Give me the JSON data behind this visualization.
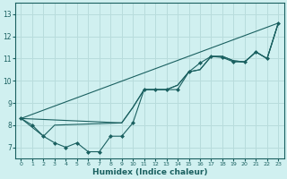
{
  "title": "",
  "xlabel": "Humidex (Indice chaleur)",
  "ylabel": "",
  "bg_color": "#d0f0f0",
  "line_color": "#1a6060",
  "grid_color": "#b8dcdc",
  "xlim": [
    -0.5,
    23.5
  ],
  "ylim": [
    6.5,
    13.5
  ],
  "xticks": [
    0,
    1,
    2,
    3,
    4,
    5,
    6,
    7,
    8,
    9,
    10,
    11,
    12,
    13,
    14,
    15,
    16,
    17,
    18,
    19,
    20,
    21,
    22,
    23
  ],
  "yticks": [
    7,
    8,
    9,
    10,
    11,
    12,
    13
  ],
  "series": [
    {
      "x": [
        0,
        1,
        2,
        3,
        4,
        5,
        6,
        7,
        8,
        9,
        10,
        11,
        12,
        13,
        14,
        15,
        16,
        17,
        18,
        19,
        20,
        21,
        22,
        23
      ],
      "y": [
        8.3,
        8.0,
        7.5,
        7.2,
        7.0,
        7.2,
        6.8,
        6.8,
        7.5,
        7.5,
        8.1,
        9.6,
        9.6,
        9.6,
        9.6,
        10.4,
        10.8,
        11.1,
        11.05,
        10.85,
        10.85,
        11.3,
        11.0,
        12.6
      ],
      "has_markers": true
    },
    {
      "x": [
        0,
        23
      ],
      "y": [
        8.3,
        12.6
      ],
      "has_markers": false
    },
    {
      "x": [
        0,
        9,
        10,
        11,
        12,
        13,
        14,
        15,
        16,
        17,
        18,
        19,
        20,
        21,
        22,
        23
      ],
      "y": [
        8.3,
        8.1,
        8.8,
        9.6,
        9.6,
        9.6,
        9.8,
        10.4,
        10.5,
        11.1,
        11.1,
        10.9,
        10.85,
        11.3,
        11.0,
        12.6
      ],
      "has_markers": false
    },
    {
      "x": [
        0,
        2,
        3,
        9,
        10,
        11,
        12,
        13,
        14,
        15,
        16,
        17,
        18,
        19,
        20,
        21,
        22,
        23
      ],
      "y": [
        8.3,
        7.5,
        8.0,
        8.1,
        8.8,
        9.6,
        9.6,
        9.6,
        9.8,
        10.4,
        10.5,
        11.1,
        11.1,
        10.9,
        10.85,
        11.3,
        11.0,
        12.6
      ],
      "has_markers": false
    }
  ]
}
